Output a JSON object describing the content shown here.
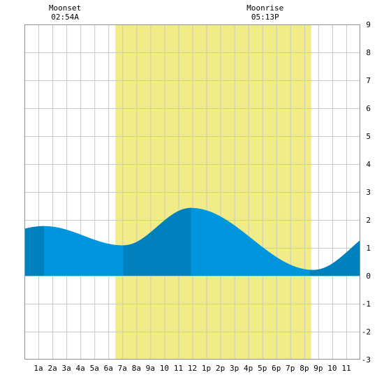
{
  "chart_data": {
    "type": "area",
    "title": "",
    "xlabel": "",
    "ylabel": "",
    "xlim": [
      0,
      24
    ],
    "ylim": [
      -3,
      9
    ],
    "yticks": [
      -3,
      -2,
      -1,
      0,
      1,
      2,
      3,
      4,
      5,
      6,
      7,
      8,
      9
    ],
    "xtick_labels": [
      {
        "x": 1,
        "label": "1a"
      },
      {
        "x": 2,
        "label": "2a"
      },
      {
        "x": 3,
        "label": "3a"
      },
      {
        "x": 4,
        "label": "4a"
      },
      {
        "x": 5,
        "label": "5a"
      },
      {
        "x": 6,
        "label": "6a"
      },
      {
        "x": 7,
        "label": "7a"
      },
      {
        "x": 8,
        "label": "8a"
      },
      {
        "x": 9,
        "label": "9a"
      },
      {
        "x": 10,
        "label": "10"
      },
      {
        "x": 11,
        "label": "11"
      },
      {
        "x": 12,
        "label": "12"
      },
      {
        "x": 13,
        "label": "1p"
      },
      {
        "x": 14,
        "label": "2p"
      },
      {
        "x": 15,
        "label": "3p"
      },
      {
        "x": 16,
        "label": "4p"
      },
      {
        "x": 17,
        "label": "5p"
      },
      {
        "x": 18,
        "label": "6p"
      },
      {
        "x": 19,
        "label": "7p"
      },
      {
        "x": 20,
        "label": "8p"
      },
      {
        "x": 21,
        "label": "9p"
      },
      {
        "x": 22,
        "label": "10"
      },
      {
        "x": 23,
        "label": "11"
      }
    ],
    "grid": true,
    "daylight": {
      "start": 6.5,
      "end": 20.5
    },
    "night_bands": [
      [
        0,
        1.4
      ],
      [
        7.07,
        11.9
      ],
      [
        20.4,
        24
      ]
    ],
    "extrema": [
      {
        "x": 1.4,
        "y": 1.78
      },
      {
        "x": 7.07,
        "y": 1.09
      },
      {
        "x": 11.9,
        "y": 2.43
      },
      {
        "x": 20.65,
        "y": 0.21
      }
    ],
    "start_value": {
      "x": 0,
      "y": 1.63
    },
    "end_value": {
      "x": 24,
      "y": 1.28
    },
    "moon_events": [
      {
        "label": "Moonset",
        "time": "02:54A",
        "x": 2.9
      },
      {
        "label": "Moonrise",
        "time": "05:13P",
        "x": 17.2
      }
    ],
    "colors": {
      "tide": "#0095dc",
      "tide_dark": "#0080bc",
      "daylight": "#f2ec88",
      "grid": "#c8c8c8"
    }
  }
}
